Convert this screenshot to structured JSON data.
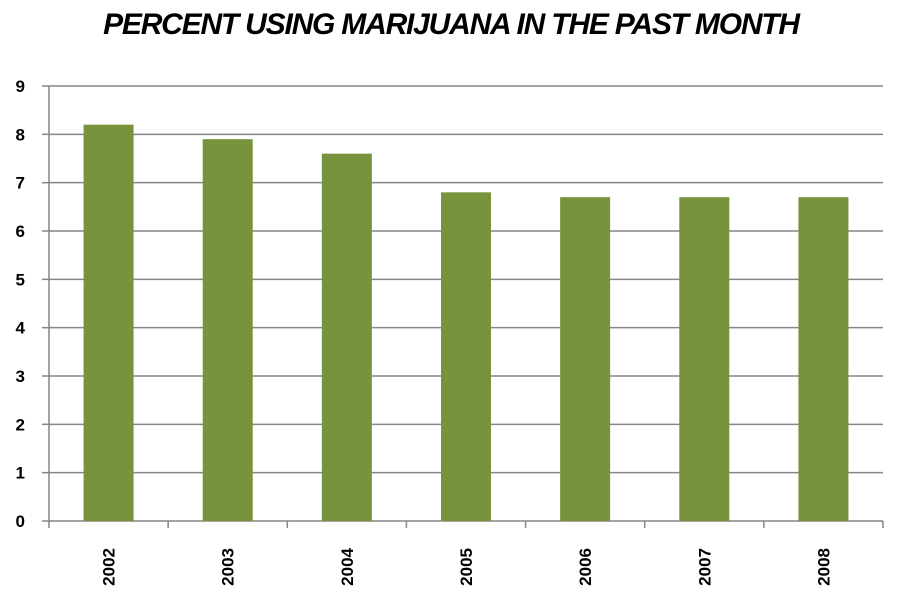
{
  "chart_data": {
    "type": "bar",
    "title": "PERCENT USING MARIJUANA IN THE PAST MONTH",
    "xlabel": "",
    "ylabel": "",
    "categories": [
      "2002",
      "2003",
      "2004",
      "2005",
      "2006",
      "2007",
      "2008"
    ],
    "values": [
      8.2,
      7.9,
      7.6,
      6.8,
      6.7,
      6.7,
      6.7
    ],
    "ylim": [
      0,
      9
    ],
    "yticks": [
      "0",
      "1",
      "2",
      "3",
      "4",
      "5",
      "6",
      "7",
      "8",
      "9"
    ],
    "grid": true,
    "legend": "none",
    "bar_color": "#77933c",
    "grid_color": "#868686"
  }
}
